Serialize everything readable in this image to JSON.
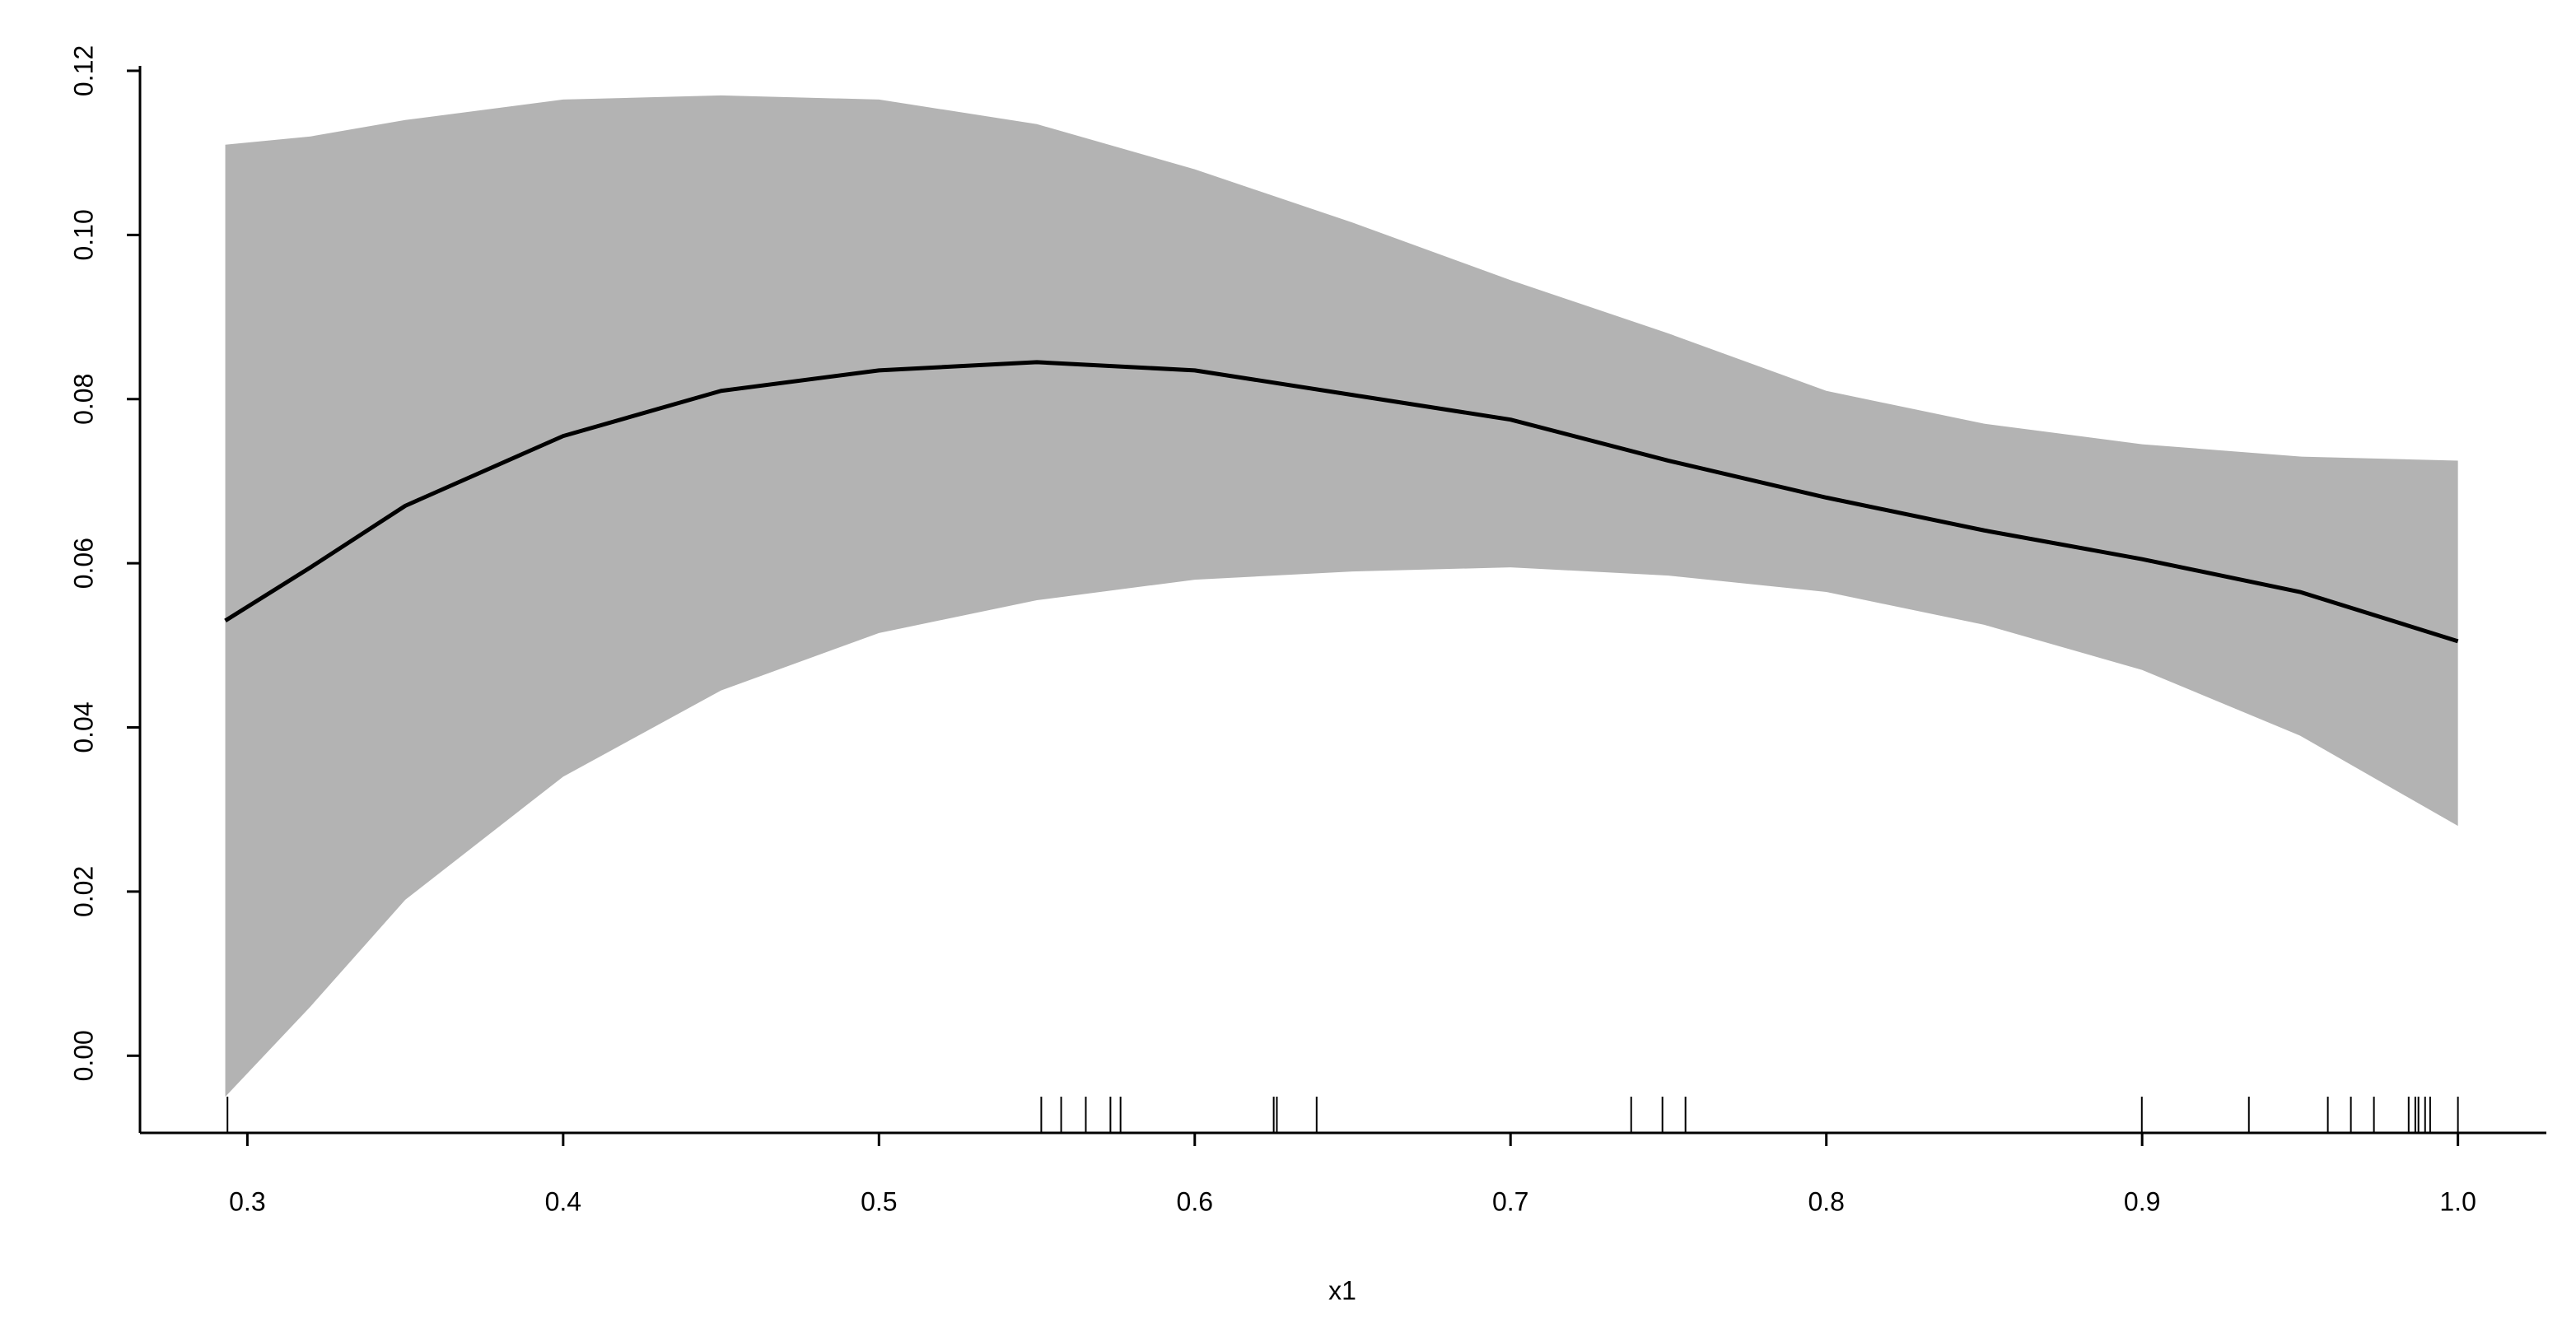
{
  "chart_data": {
    "type": "line",
    "xlabel": "x1",
    "x": [
      0.293,
      0.32,
      0.35,
      0.4,
      0.45,
      0.5,
      0.55,
      0.6,
      0.65,
      0.7,
      0.75,
      0.8,
      0.85,
      0.9,
      0.95,
      1.0
    ],
    "values": [
      0.053,
      0.0595,
      0.067,
      0.0755,
      0.081,
      0.0835,
      0.0845,
      0.0835,
      0.0805,
      0.0775,
      0.0725,
      0.068,
      0.064,
      0.0605,
      0.0565,
      0.0505
    ],
    "upper": [
      0.111,
      0.112,
      0.114,
      0.1165,
      0.117,
      0.1165,
      0.1135,
      0.108,
      0.1015,
      0.0945,
      0.088,
      0.081,
      0.077,
      0.0745,
      0.073,
      0.0725
    ],
    "lower": [
      -0.005,
      0.006,
      0.019,
      0.034,
      0.0445,
      0.0515,
      0.0555,
      0.058,
      0.059,
      0.0595,
      0.0585,
      0.0565,
      0.0525,
      0.047,
      0.039,
      0.028
    ],
    "rug": [
      0.2937,
      0.5514,
      0.5577,
      0.5655,
      0.5733,
      0.5765,
      0.625,
      0.626,
      0.6386,
      0.7382,
      0.7481,
      0.7554,
      0.8999,
      0.9338,
      0.9588,
      0.9661,
      0.9734,
      0.9844,
      0.9865,
      0.9875,
      0.9896,
      0.9912,
      1.0
    ],
    "color": "#000000",
    "band_color": "#b3b3b3",
    "xlim": [
      0.266,
      1.028
    ],
    "ylim": [
      -0.0094,
      0.1206
    ],
    "xticks": [
      0.3,
      0.4,
      0.5,
      0.6,
      0.7,
      0.8,
      0.9,
      {
        "value": 1,
        "label": "1.0"
      }
    ],
    "yticks": [
      {
        "value": 0,
        "label": "0.00"
      },
      {
        "value": 0.02,
        "label": "0.02"
      },
      {
        "value": 0.04,
        "label": "0.04"
      },
      {
        "value": 0.06,
        "label": "0.06"
      },
      {
        "value": 0.08,
        "label": "0.08"
      },
      {
        "value": 0.1,
        "label": "0.10"
      },
      {
        "value": 0.12,
        "label": "0.12"
      }
    ]
  }
}
